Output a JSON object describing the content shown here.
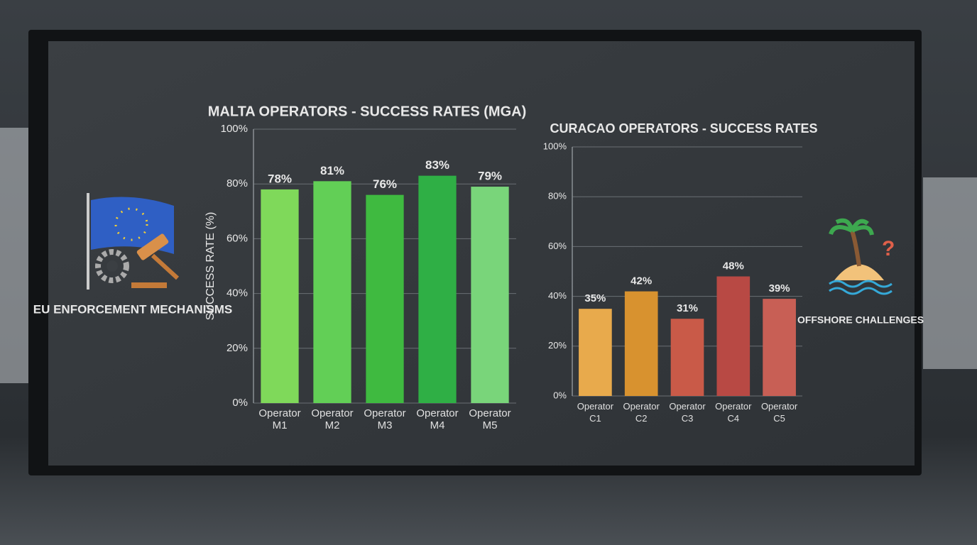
{
  "side_labels": {
    "left": "EU ENFORCEMENT MECHANISMS",
    "right": "OFFSHORE CHALLENGES"
  },
  "chart_data": [
    {
      "type": "bar",
      "title": "MALTA OPERATORS - SUCCESS RATES (MGA)",
      "y_label": "SUCCESS RATE (%)",
      "categories": [
        "Operator M1",
        "Operator M2",
        "Operator M3",
        "Operator M4",
        "Operator M5"
      ],
      "values": [
        78,
        81,
        76,
        83,
        79
      ],
      "value_labels": [
        "78%",
        "81%",
        "76%",
        "83%",
        "79%"
      ],
      "colors": [
        "#7fd95a",
        "#62cf56",
        "#3fba40",
        "#2faf45",
        "#79d57a"
      ],
      "ylim": [
        0,
        100
      ],
      "yticks": [
        {
          "value": 0,
          "label": "0%"
        },
        {
          "value": 20,
          "label": "20%"
        },
        {
          "value": 40,
          "label": "40%"
        },
        {
          "value": 60,
          "label": "60%"
        },
        {
          "value": 80,
          "label": "80%"
        },
        {
          "value": 100,
          "label": "100%"
        }
      ],
      "grid": true
    },
    {
      "type": "bar",
      "title": "CURACAO OPERATORS - SUCCESS RATES",
      "categories": [
        "Operator C1",
        "Operator C2",
        "Operator C3",
        "Operator C4",
        "Operator C5"
      ],
      "values": [
        35,
        42,
        31,
        48,
        39
      ],
      "value_labels": [
        "35%",
        "42%",
        "31%",
        "48%",
        "39%"
      ],
      "colors": [
        "#e8aa4c",
        "#d8922f",
        "#c95a48",
        "#b84944",
        "#c85f55"
      ],
      "ylim": [
        0,
        100
      ],
      "yticks": [
        {
          "value": 0,
          "label": "0%"
        },
        {
          "value": 20,
          "label": "20%"
        },
        {
          "value": 40,
          "label": "40%"
        },
        {
          "value": 60,
          "label": "60%"
        },
        {
          "value": 80,
          "label": "80%"
        },
        {
          "value": 100,
          "label": "100%"
        }
      ],
      "grid": true
    }
  ]
}
